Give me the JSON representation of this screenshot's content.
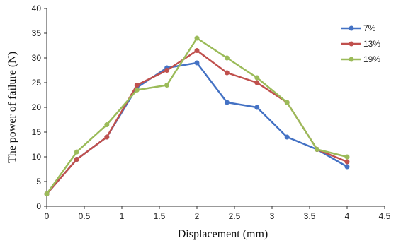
{
  "chart_data": {
    "type": "line",
    "xlabel": "Displacement (mm)",
    "ylabel": "The power of failure (N)",
    "xlim": [
      0,
      4.5
    ],
    "ylim": [
      0,
      40
    ],
    "xticks": [
      "0",
      "0.5",
      "1",
      "1.5",
      "2",
      "2.5",
      "3",
      "3.5",
      "4",
      "4.5"
    ],
    "yticks": [
      "0",
      "5",
      "10",
      "15",
      "20",
      "25",
      "30",
      "35",
      "40"
    ],
    "grid": false,
    "legend_position": "top-right",
    "series": [
      {
        "name": "7%",
        "color": "#4472c4",
        "x": [
          0,
          0.4,
          0.8,
          1.2,
          1.6,
          2.0,
          2.4,
          2.8,
          3.2,
          3.6,
          4.0
        ],
        "y": [
          2.5,
          9.5,
          14,
          24,
          28,
          29,
          21,
          20,
          14,
          11.5,
          8
        ]
      },
      {
        "name": "13%",
        "color": "#c0504d",
        "x": [
          0,
          0.4,
          0.8,
          1.2,
          1.6,
          2.0,
          2.4,
          2.8,
          3.2,
          3.6,
          4.0
        ],
        "y": [
          2.5,
          9.5,
          14,
          24.5,
          27.5,
          31.5,
          27,
          25,
          21,
          11.5,
          9
        ]
      },
      {
        "name": "19%",
        "color": "#9bbb59",
        "x": [
          0,
          0.4,
          0.8,
          1.2,
          1.6,
          2.0,
          2.4,
          2.8,
          3.2,
          3.6,
          4.0
        ],
        "y": [
          2.5,
          11,
          16.5,
          23.5,
          24.5,
          34,
          30,
          26,
          21,
          11.5,
          10
        ]
      }
    ]
  }
}
